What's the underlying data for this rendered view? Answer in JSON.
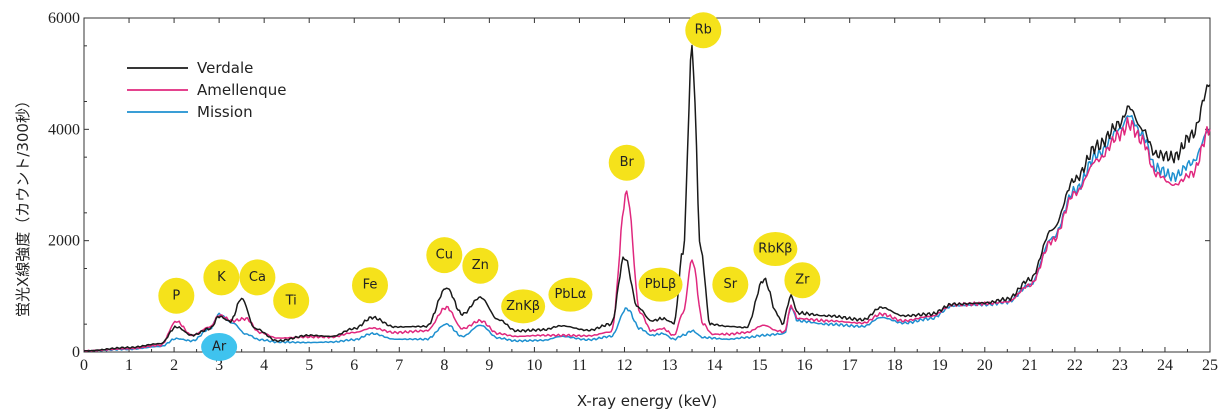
{
  "chart_data": {
    "type": "line",
    "xlabel": "X-ray energy (keV)",
    "ylabel": "蛍光X線強度（カウント/300秒）",
    "xlim": [
      0,
      25
    ],
    "ylim": [
      0,
      6000
    ],
    "x_ticks": [
      0,
      1,
      2,
      3,
      4,
      5,
      6,
      7,
      8,
      9,
      10,
      11,
      12,
      13,
      14,
      15,
      16,
      17,
      18,
      19,
      20,
      21,
      22,
      23,
      24,
      25
    ],
    "y_ticks": [
      0,
      2000,
      4000,
      6000
    ],
    "legend": {
      "placement": "top-left"
    },
    "series": [
      {
        "name": "Verdale",
        "color": "#1a1a1a",
        "points": [
          [
            0,
            20
          ],
          [
            1,
            80
          ],
          [
            1.7,
            150
          ],
          [
            2.05,
            450
          ],
          [
            2.4,
            300
          ],
          [
            2.8,
            420
          ],
          [
            3.0,
            640
          ],
          [
            3.25,
            550
          ],
          [
            3.5,
            960
          ],
          [
            3.8,
            420
          ],
          [
            4.3,
            200
          ],
          [
            5,
            300
          ],
          [
            5.5,
            280
          ],
          [
            6.0,
            420
          ],
          [
            6.4,
            620
          ],
          [
            6.9,
            450
          ],
          [
            7.6,
            460
          ],
          [
            8.05,
            1150
          ],
          [
            8.4,
            680
          ],
          [
            8.8,
            980
          ],
          [
            9.2,
            580
          ],
          [
            9.6,
            380
          ],
          [
            10.2,
            400
          ],
          [
            10.6,
            470
          ],
          [
            11.2,
            390
          ],
          [
            11.7,
            500
          ],
          [
            12.0,
            1700
          ],
          [
            12.3,
            800
          ],
          [
            12.6,
            560
          ],
          [
            12.85,
            600
          ],
          [
            13.1,
            520
          ],
          [
            13.3,
            1800
          ],
          [
            13.5,
            5400
          ],
          [
            13.7,
            1800
          ],
          [
            13.9,
            500
          ],
          [
            14.3,
            460
          ],
          [
            14.7,
            440
          ],
          [
            15.1,
            1300
          ],
          [
            15.4,
            680
          ],
          [
            15.5,
            500
          ],
          [
            15.7,
            1000
          ],
          [
            15.85,
            700
          ],
          [
            16.5,
            650
          ],
          [
            17.3,
            580
          ],
          [
            17.7,
            800
          ],
          [
            18.2,
            650
          ],
          [
            18.8,
            680
          ],
          [
            19.3,
            860
          ],
          [
            20.0,
            880
          ],
          [
            20.5,
            950
          ],
          [
            21.0,
            1300
          ],
          [
            21.5,
            2200
          ],
          [
            22.0,
            3100
          ],
          [
            22.5,
            3700
          ],
          [
            23.0,
            4100
          ],
          [
            23.2,
            4400
          ],
          [
            23.5,
            4000
          ],
          [
            23.8,
            3550
          ],
          [
            24.2,
            3500
          ],
          [
            24.6,
            3900
          ],
          [
            25,
            4800
          ]
        ]
      },
      {
        "name": "Amellenque",
        "color": "#e0287e",
        "points": [
          [
            0,
            20
          ],
          [
            1,
            60
          ],
          [
            1.7,
            120
          ],
          [
            2.05,
            550
          ],
          [
            2.4,
            300
          ],
          [
            2.8,
            450
          ],
          [
            3.0,
            660
          ],
          [
            3.3,
            560
          ],
          [
            3.6,
            600
          ],
          [
            3.9,
            350
          ],
          [
            4.3,
            250
          ],
          [
            5,
            270
          ],
          [
            5.5,
            270
          ],
          [
            6.0,
            350
          ],
          [
            6.4,
            430
          ],
          [
            6.9,
            350
          ],
          [
            7.6,
            380
          ],
          [
            8.05,
            800
          ],
          [
            8.4,
            420
          ],
          [
            8.8,
            560
          ],
          [
            9.2,
            330
          ],
          [
            9.6,
            280
          ],
          [
            10.2,
            300
          ],
          [
            10.6,
            300
          ],
          [
            11.2,
            290
          ],
          [
            11.7,
            360
          ],
          [
            12.05,
            2850
          ],
          [
            12.35,
            700
          ],
          [
            12.6,
            380
          ],
          [
            12.85,
            420
          ],
          [
            13.1,
            300
          ],
          [
            13.3,
            700
          ],
          [
            13.5,
            1650
          ],
          [
            13.75,
            500
          ],
          [
            13.95,
            320
          ],
          [
            14.3,
            320
          ],
          [
            14.7,
            350
          ],
          [
            15.1,
            480
          ],
          [
            15.4,
            380
          ],
          [
            15.55,
            360
          ],
          [
            15.7,
            820
          ],
          [
            15.85,
            600
          ],
          [
            16.5,
            560
          ],
          [
            17.3,
            520
          ],
          [
            17.7,
            680
          ],
          [
            18.2,
            560
          ],
          [
            18.8,
            640
          ],
          [
            19.3,
            850
          ],
          [
            20.0,
            870
          ],
          [
            20.5,
            900
          ],
          [
            21.0,
            1200
          ],
          [
            21.5,
            2000
          ],
          [
            22.0,
            2850
          ],
          [
            22.5,
            3450
          ],
          [
            23.0,
            3900
          ],
          [
            23.2,
            4100
          ],
          [
            23.5,
            3800
          ],
          [
            23.8,
            3200
          ],
          [
            24.2,
            3000
          ],
          [
            24.6,
            3200
          ],
          [
            25,
            4000
          ]
        ]
      },
      {
        "name": "Mission",
        "color": "#1e90d0",
        "points": [
          [
            0,
            20
          ],
          [
            1,
            50
          ],
          [
            1.7,
            100
          ],
          [
            2.05,
            240
          ],
          [
            2.4,
            200
          ],
          [
            2.8,
            420
          ],
          [
            3.0,
            680
          ],
          [
            3.3,
            520
          ],
          [
            3.6,
            320
          ],
          [
            3.9,
            220
          ],
          [
            4.3,
            180
          ],
          [
            5,
            170
          ],
          [
            5.5,
            180
          ],
          [
            6.0,
            220
          ],
          [
            6.4,
            330
          ],
          [
            6.9,
            230
          ],
          [
            7.6,
            230
          ],
          [
            8.05,
            500
          ],
          [
            8.4,
            280
          ],
          [
            8.8,
            480
          ],
          [
            9.2,
            250
          ],
          [
            9.6,
            200
          ],
          [
            10.2,
            210
          ],
          [
            10.6,
            280
          ],
          [
            11.2,
            220
          ],
          [
            11.7,
            280
          ],
          [
            12.05,
            780
          ],
          [
            12.35,
            420
          ],
          [
            12.6,
            300
          ],
          [
            12.85,
            330
          ],
          [
            13.1,
            230
          ],
          [
            13.3,
            300
          ],
          [
            13.5,
            380
          ],
          [
            13.75,
            260
          ],
          [
            14.3,
            230
          ],
          [
            14.7,
            260
          ],
          [
            15.1,
            300
          ],
          [
            15.4,
            320
          ],
          [
            15.55,
            330
          ],
          [
            15.7,
            800
          ],
          [
            15.85,
            560
          ],
          [
            16.5,
            500
          ],
          [
            17.3,
            460
          ],
          [
            17.7,
            620
          ],
          [
            18.2,
            520
          ],
          [
            18.8,
            600
          ],
          [
            19.3,
            830
          ],
          [
            20.0,
            850
          ],
          [
            20.5,
            900
          ],
          [
            21.0,
            1200
          ],
          [
            21.5,
            2050
          ],
          [
            22.0,
            2900
          ],
          [
            22.5,
            3550
          ],
          [
            23.0,
            4000
          ],
          [
            23.2,
            4250
          ],
          [
            23.5,
            3900
          ],
          [
            23.8,
            3300
          ],
          [
            24.2,
            3150
          ],
          [
            24.6,
            3400
          ],
          [
            25,
            4000
          ]
        ]
      }
    ],
    "annotations": [
      {
        "text": "P",
        "x": 2.05,
        "y": 1010,
        "color": "#f5e21b"
      },
      {
        "text": "K",
        "x": 3.05,
        "y": 1340,
        "color": "#f5e21b"
      },
      {
        "text": "Ca",
        "x": 3.85,
        "y": 1340,
        "color": "#f5e21b"
      },
      {
        "text": "Ti",
        "x": 4.6,
        "y": 920,
        "color": "#f5e21b"
      },
      {
        "text": "Fe",
        "x": 6.35,
        "y": 1200,
        "color": "#f5e21b"
      },
      {
        "text": "Cu",
        "x": 8.0,
        "y": 1740,
        "color": "#f5e21b"
      },
      {
        "text": "Zn",
        "x": 8.8,
        "y": 1550,
        "color": "#f5e21b"
      },
      {
        "text": "ZnKβ",
        "x": 9.75,
        "y": 820,
        "color": "#f5e21b"
      },
      {
        "text": "PbLα",
        "x": 10.8,
        "y": 1030,
        "color": "#f5e21b"
      },
      {
        "text": "Br",
        "x": 12.05,
        "y": 3400,
        "color": "#f5e21b"
      },
      {
        "text": "PbLβ",
        "x": 12.8,
        "y": 1210,
        "color": "#f5e21b"
      },
      {
        "text": "Rb",
        "x": 13.75,
        "y": 5780,
        "color": "#f5e21b"
      },
      {
        "text": "Sr",
        "x": 14.35,
        "y": 1210,
        "color": "#f5e21b"
      },
      {
        "text": "RbKβ",
        "x": 15.35,
        "y": 1850,
        "color": "#f5e21b"
      },
      {
        "text": "Zr",
        "x": 15.95,
        "y": 1290,
        "color": "#f5e21b"
      },
      {
        "text": "Ar",
        "x": 3.0,
        "y": 90,
        "color": "#3fc3ee"
      }
    ]
  }
}
